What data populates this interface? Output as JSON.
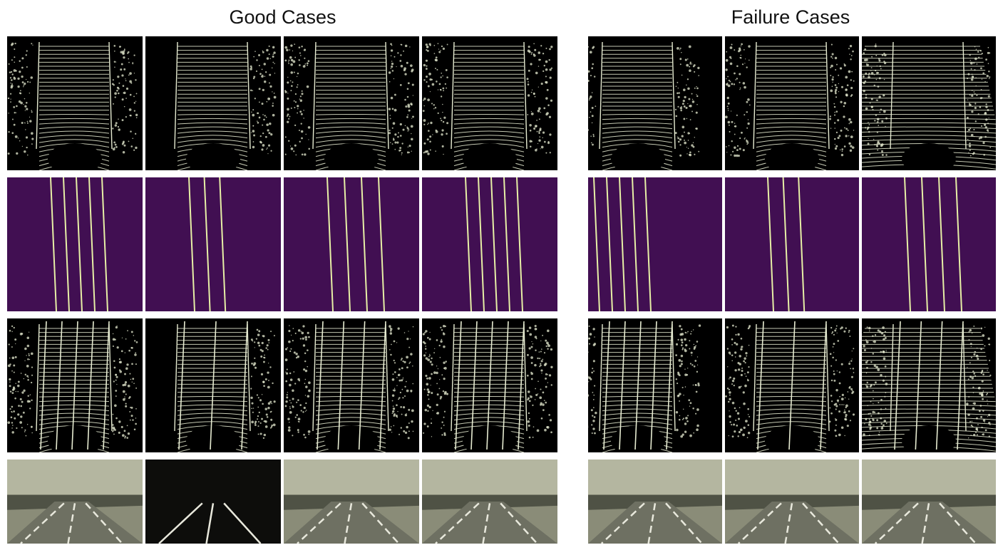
{
  "titles": {
    "good": "Good Cases",
    "failure": "Failure Cases"
  },
  "colors": {
    "background": "#ffffff",
    "lidar_background": "#000000",
    "lidar_points": "#e7ecd2",
    "mask_background": "#410f52",
    "mask_lane": "#e7f0a6",
    "camera_tint": "#8a8c78"
  },
  "rows": [
    "lidar-bev",
    "lane-mask",
    "lidar-with-lanes",
    "camera-image"
  ],
  "good_cases": [
    {
      "lanes": 5
    },
    {
      "lanes": 3
    },
    {
      "lanes": 4
    },
    {
      "lanes": 5
    }
  ],
  "failure_cases": [
    {
      "lanes": 5
    },
    {
      "lanes": 3
    },
    {
      "lanes": 4
    }
  ]
}
